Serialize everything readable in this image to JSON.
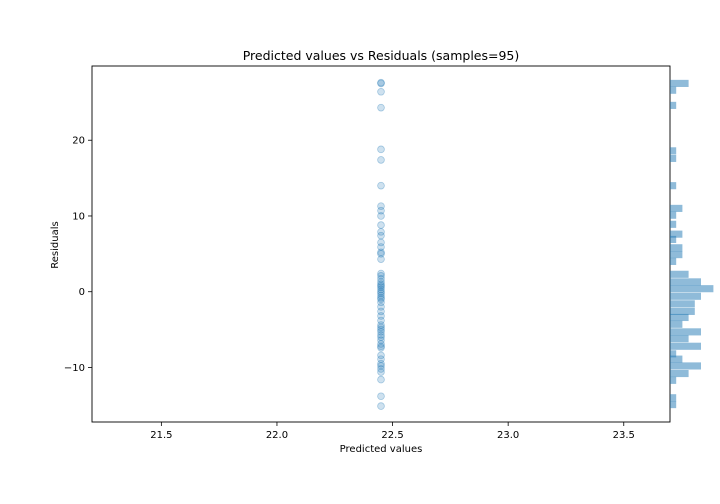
{
  "chart_data": {
    "type": "scatter",
    "title": "Predicted values vs Residuals (samples=95)",
    "xlabel": "Predicted values",
    "ylabel": "Residuals",
    "xlim": [
      21.2,
      23.7
    ],
    "ylim": [
      -17.2,
      29.8
    ],
    "x_ticks": [
      21.5,
      22.0,
      22.5,
      23.0,
      23.5
    ],
    "x_tick_labels": [
      "21.5",
      "22.0",
      "22.5",
      "23.0",
      "23.5"
    ],
    "y_ticks": [
      -10,
      0,
      10,
      20
    ],
    "y_tick_labels": [
      "−10",
      "0",
      "10",
      "20"
    ],
    "grid": false,
    "point_color": "#1f77b4",
    "hist_color": "#1f77b4",
    "series": [
      {
        "x_value": 22.45,
        "residuals": [
          27.6,
          27.5,
          26.4,
          24.3,
          18.8,
          17.4,
          14.0,
          11.3,
          10.7,
          10.0,
          8.8,
          7.9,
          7.4,
          6.5,
          5.9,
          5.2,
          5.0,
          4.3,
          2.4,
          2.1,
          1.7,
          1.3,
          1.0,
          0.8,
          0.6,
          0.3,
          0.0,
          -0.2,
          -0.5,
          -0.8,
          -1.0,
          -1.4,
          -2.0,
          -2.6,
          -3.2,
          -3.8,
          -4.4,
          -4.7,
          -5.0,
          -5.3,
          -5.7,
          -6.0,
          -6.4,
          -6.9,
          -7.2,
          -7.4,
          -8.4,
          -8.9,
          -9.5,
          -9.8,
          -10.2,
          -10.6,
          -11.6,
          -13.8,
          -15.1
        ]
      }
    ],
    "histogram": {
      "bin_count": 50,
      "bins": [
        {
          "center": 27.5,
          "count": 3
        },
        {
          "center": 26.6,
          "count": 1
        },
        {
          "center": 24.6,
          "count": 1
        },
        {
          "center": 18.6,
          "count": 1
        },
        {
          "center": 17.6,
          "count": 1
        },
        {
          "center": 14.0,
          "count": 1
        },
        {
          "center": 11.0,
          "count": 2
        },
        {
          "center": 10.1,
          "count": 1
        },
        {
          "center": 8.9,
          "count": 1
        },
        {
          "center": 7.6,
          "count": 2
        },
        {
          "center": 6.9,
          "count": 1
        },
        {
          "center": 5.8,
          "count": 2
        },
        {
          "center": 4.9,
          "count": 2
        },
        {
          "center": 4.0,
          "count": 1
        },
        {
          "center": 2.3,
          "count": 3
        },
        {
          "center": 1.3,
          "count": 5
        },
        {
          "center": 0.4,
          "count": 7
        },
        {
          "center": -0.6,
          "count": 5
        },
        {
          "center": -1.6,
          "count": 4
        },
        {
          "center": -2.6,
          "count": 4
        },
        {
          "center": -3.4,
          "count": 3
        },
        {
          "center": -4.3,
          "count": 2
        },
        {
          "center": -5.3,
          "count": 5
        },
        {
          "center": -6.2,
          "count": 3
        },
        {
          "center": -7.2,
          "count": 5
        },
        {
          "center": -8.2,
          "count": 1
        },
        {
          "center": -8.9,
          "count": 2
        },
        {
          "center": -9.8,
          "count": 5
        },
        {
          "center": -10.8,
          "count": 3
        },
        {
          "center": -11.7,
          "count": 1
        },
        {
          "center": -14.0,
          "count": 1
        },
        {
          "center": -14.9,
          "count": 1
        }
      ]
    }
  }
}
